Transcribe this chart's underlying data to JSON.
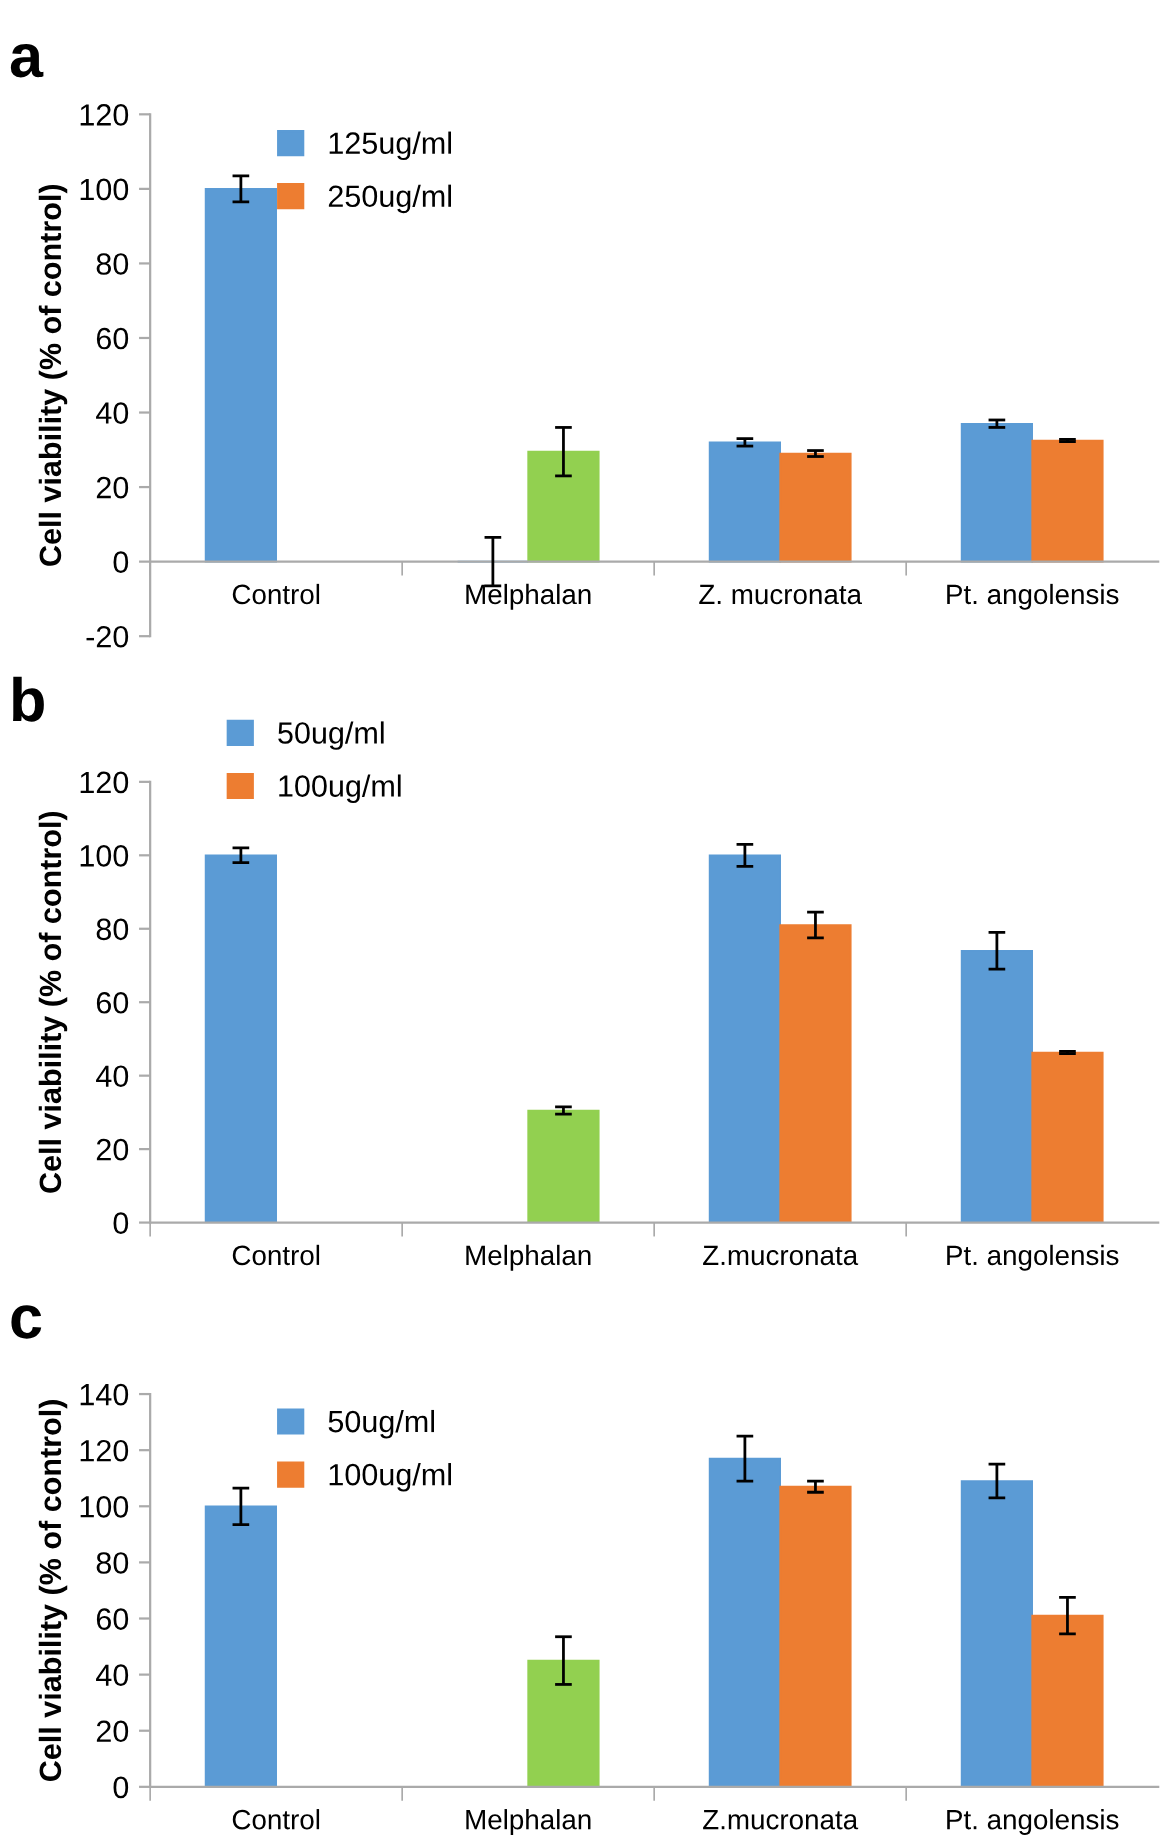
{
  "chart_data": [
    {
      "type": "bar",
      "title": "a",
      "ylabel": "Cell viability (% of control)",
      "categories": [
        "Control",
        "Melphalan",
        "Z. mucronata",
        "Pt. angolensis"
      ],
      "ylim": [
        -20,
        120
      ],
      "yticks": [
        -20,
        0,
        20,
        40,
        60,
        80,
        100,
        120
      ],
      "legend": "top left",
      "grid": false,
      "series": [
        {
          "name": "125ug/ml",
          "color": "#5b9bd5",
          "values": [
            100,
            0,
            32,
            37
          ],
          "errors": [
            3.5,
            6.5,
            1,
            1
          ]
        },
        {
          "name": "250ug/ml",
          "color": "#ed7d31",
          "colors": [
            "#ed7d31",
            "#92d050",
            "#ed7d31",
            "#ed7d31"
          ],
          "values": [
            null,
            29.5,
            29,
            32.5
          ],
          "errors": [
            null,
            6.5,
            0.8,
            0.3
          ]
        }
      ]
    },
    {
      "type": "bar",
      "title": "b",
      "ylabel": "Cell viability (% of control)",
      "categories": [
        "Control",
        "Melphalan",
        "Z.mucronata",
        "Pt. angolensis"
      ],
      "ylim": [
        0,
        120
      ],
      "yticks": [
        0,
        20,
        40,
        60,
        80,
        100,
        120
      ],
      "legend": "top left",
      "grid": false,
      "series": [
        {
          "name": "50ug/ml",
          "color": "#5b9bd5",
          "values": [
            100,
            null,
            100,
            74
          ],
          "errors": [
            2,
            null,
            3,
            5
          ]
        },
        {
          "name": "100ug/ml",
          "color": "#ed7d31",
          "colors": [
            "#ed7d31",
            "#92d050",
            "#ed7d31",
            "#ed7d31"
          ],
          "values": [
            null,
            30.5,
            81,
            46.3
          ],
          "errors": [
            null,
            1,
            3.5,
            0.3
          ]
        }
      ]
    },
    {
      "type": "bar",
      "title": "c",
      "ylabel": "Cell viability (% of control)",
      "categories": [
        "Control",
        "Melphalan",
        "Z.mucronata",
        "Pt. angolensis"
      ],
      "ylim": [
        0,
        140
      ],
      "yticks": [
        0,
        20,
        40,
        60,
        80,
        100,
        120,
        140
      ],
      "legend": "top left",
      "grid": false,
      "series": [
        {
          "name": "50ug/ml",
          "color": "#5b9bd5",
          "values": [
            100,
            null,
            117,
            109
          ],
          "errors": [
            6.5,
            null,
            8,
            6
          ]
        },
        {
          "name": "100ug/ml",
          "color": "#ed7d31",
          "colors": [
            "#ed7d31",
            "#92d050",
            "#ed7d31",
            "#ed7d31"
          ],
          "values": [
            null,
            45,
            107,
            61
          ],
          "errors": [
            null,
            8.5,
            2,
            6.5
          ]
        }
      ]
    }
  ]
}
